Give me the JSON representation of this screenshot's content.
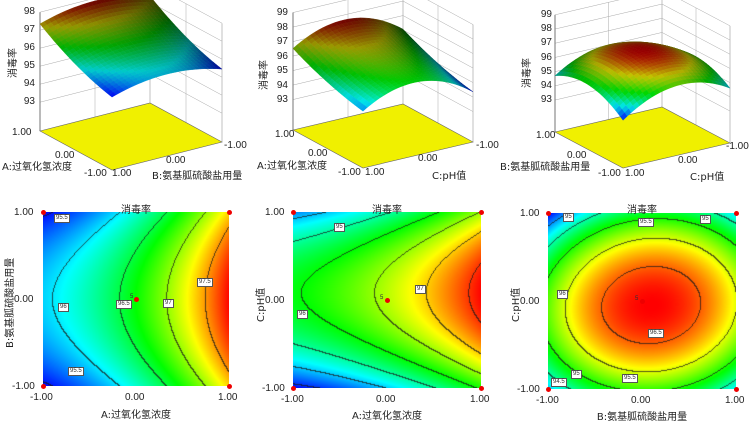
{
  "response_label": "消毒率",
  "surface_plots": [
    {
      "z_ticks": [
        "93",
        "94",
        "95",
        "96",
        "97",
        "98"
      ],
      "x_axis": "A:过氧化氢浓度",
      "y_axis": "B:氨基胍硫酸盐用量",
      "x_ticks": [
        "1.00",
        "0.00",
        "-1.00"
      ],
      "y_ticks": [
        "1.00",
        "0.00",
        "-1.00"
      ]
    },
    {
      "z_ticks": [
        "93",
        "94",
        "95",
        "96",
        "97",
        "98",
        "99"
      ],
      "x_axis": "A:过氧化氢浓度",
      "y_axis": "C:pH值",
      "x_ticks": [
        "1.00",
        "0.00",
        "-1.00"
      ],
      "y_ticks": [
        "1.00",
        "0.00",
        "-1.00"
      ]
    },
    {
      "z_ticks": [
        "93",
        "94",
        "95",
        "96",
        "97",
        "98",
        "99"
      ],
      "x_axis": "B:氨基胍硫酸盐用量",
      "y_axis": "C:pH值",
      "x_ticks": [
        "1.00",
        "0.00",
        "-1.00"
      ],
      "y_ticks": [
        "1.00",
        "0.00",
        "-1.00"
      ]
    }
  ],
  "contour_plots": [
    {
      "title": "消毒率",
      "x_axis": "A:过氧化氢浓度",
      "y_axis": "B:氨基胍硫酸盐用量",
      "x_ticks": [
        "-1.00",
        "0.00",
        "1.00"
      ],
      "y_ticks": [
        "1.00",
        "0.00",
        "-1.00"
      ],
      "contour_labels": [
        "95.5",
        "96",
        "96.5",
        "97",
        "97.5",
        "95.5"
      ],
      "center_label": "5"
    },
    {
      "title": "消毒率",
      "x_axis": "A:过氧化氢浓度",
      "y_axis": "C:pH值",
      "x_ticks": [
        "-1.00",
        "0.00",
        "1.00"
      ],
      "y_ticks": [
        "1.00",
        "0.00",
        "-1.00"
      ],
      "contour_labels": [
        "95",
        "96",
        "97"
      ],
      "center_label": "5"
    },
    {
      "title": "消毒率",
      "x_axis": "B:氨基胍硫酸盐用量",
      "y_axis": "C:pH值",
      "x_ticks": [
        "-1.00",
        "0.00",
        "1.00"
      ],
      "y_ticks": [
        "1.00",
        "0.00",
        "-1.00"
      ],
      "contour_labels": [
        "95",
        "95.5",
        "95",
        "96",
        "96.5",
        "95.5",
        "95",
        "94.5"
      ],
      "center_label": "5"
    }
  ],
  "chart_data": [
    {
      "type": "surface",
      "z_label": "消毒率",
      "x_label": "A:过氧化氢浓度",
      "y_label": "B:氨基胍硫酸盐用量",
      "x_range": [
        -1,
        1
      ],
      "y_range": [
        -1,
        1
      ],
      "z_range": [
        93,
        98
      ]
    },
    {
      "type": "surface",
      "z_label": "消毒率",
      "x_label": "A:过氧化氢浓度",
      "y_label": "C:pH值",
      "x_range": [
        -1,
        1
      ],
      "y_range": [
        -1,
        1
      ],
      "z_range": [
        93,
        99
      ]
    },
    {
      "type": "surface",
      "z_label": "消毒率",
      "x_label": "B:氨基胍硫酸盐用量",
      "y_label": "C:pH值",
      "x_range": [
        -1,
        1
      ],
      "y_range": [
        -1,
        1
      ],
      "z_range": [
        93,
        99
      ]
    },
    {
      "type": "heatmap",
      "title": "消毒率",
      "x_label": "A:过氧化氢浓度",
      "y_label": "B:氨基胍硫酸盐用量",
      "x_range": [
        -1,
        1
      ],
      "y_range": [
        -1,
        1
      ],
      "contour_levels": [
        95.5,
        96,
        96.5,
        97,
        97.5
      ],
      "design_points": [
        [
          -1,
          1
        ],
        [
          1,
          1
        ],
        [
          -1,
          -1
        ],
        [
          1,
          -1
        ],
        [
          0,
          0
        ]
      ],
      "center_replicates": 5
    },
    {
      "type": "heatmap",
      "title": "消毒率",
      "x_label": "A:过氧化氢浓度",
      "y_label": "C:pH值",
      "x_range": [
        -1,
        1
      ],
      "y_range": [
        -1,
        1
      ],
      "contour_levels": [
        95,
        96,
        97
      ],
      "design_points": [
        [
          -1,
          1
        ],
        [
          1,
          1
        ],
        [
          -1,
          -1
        ],
        [
          1,
          -1
        ],
        [
          0,
          0
        ]
      ],
      "center_replicates": 5
    },
    {
      "type": "heatmap",
      "title": "消毒率",
      "x_label": "B:氨基胍硫酸盐用量",
      "y_label": "C:pH值",
      "x_range": [
        -1,
        1
      ],
      "y_range": [
        -1,
        1
      ],
      "contour_levels": [
        94.5,
        95,
        95.5,
        96,
        96.5
      ],
      "design_points": [
        [
          -1,
          1
        ],
        [
          1,
          1
        ],
        [
          -1,
          -1
        ],
        [
          1,
          -1
        ],
        [
          0,
          0
        ]
      ],
      "center_replicates": 5
    },
    {
      "colors": {
        "low": "#0000ff",
        "mid_low": "#00ffff",
        "mid": "#00ff00",
        "mid_high": "#ffff00",
        "high": "#ff0000",
        "floor": "#f0f000",
        "design_point": "#ee0000"
      }
    }
  ]
}
